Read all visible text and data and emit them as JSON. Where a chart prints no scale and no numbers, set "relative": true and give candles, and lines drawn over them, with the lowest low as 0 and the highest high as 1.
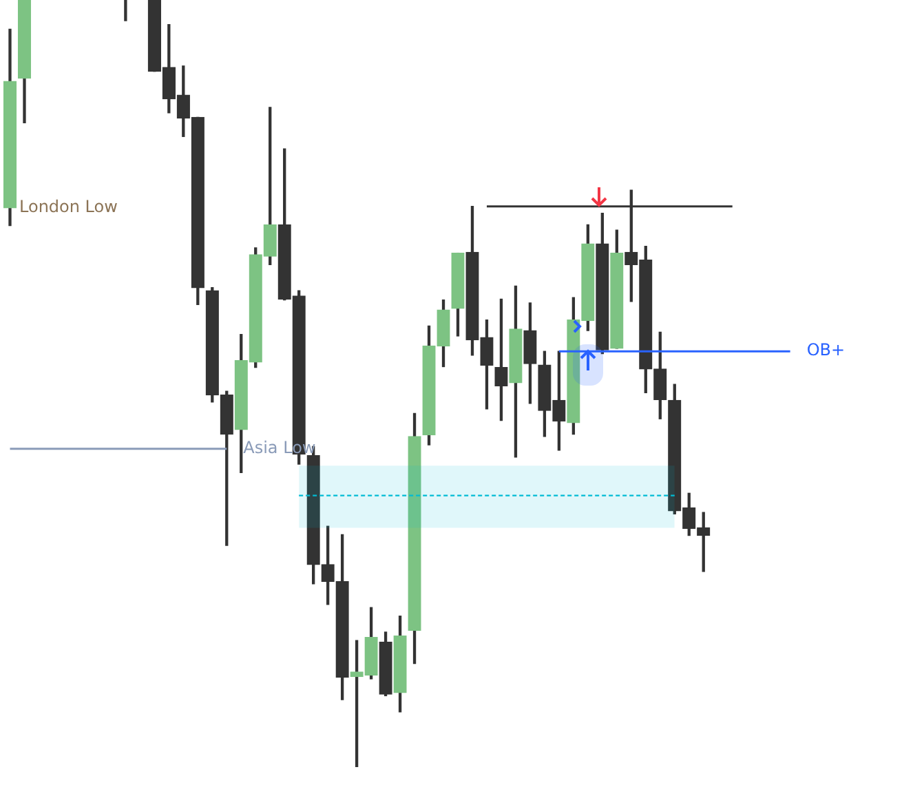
{
  "chart_data": {
    "type": "candlestick",
    "relative": true,
    "categories": [
      null,
      null,
      null,
      null,
      null,
      null,
      null,
      null,
      null,
      null,
      null,
      null,
      null,
      null,
      null,
      null,
      null,
      null,
      null,
      null,
      null,
      null,
      null,
      null,
      null,
      null,
      null,
      null,
      null,
      null,
      null,
      null,
      null,
      null,
      null,
      null,
      null,
      null,
      null,
      null,
      null,
      null,
      null,
      null,
      null,
      null,
      null,
      null,
      null,
      null,
      null,
      null,
      null,
      null,
      null,
      null,
      null,
      null,
      null,
      null,
      null,
      null,
      null
    ],
    "ohlc": [
      [
        0.729,
        0.962,
        0.706,
        0.894
      ],
      [
        0.898,
        1,
        0.84,
        1
      ],
      null,
      null,
      null,
      null,
      null,
      null,
      [
        1,
        1,
        0.973,
        1
      ],
      null,
      [
        1,
        1,
        0.907,
        0.907
      ],
      [
        0.912,
        0.968,
        0.853,
        0.871
      ],
      [
        0.876,
        0.914,
        0.822,
        0.846
      ],
      [
        0.847,
        0.847,
        0.603,
        0.625
      ],
      [
        0.621,
        0.625,
        0.476,
        0.485
      ],
      [
        0.485,
        0.49,
        0.289,
        0.434
      ],
      [
        0.44,
        0.564,
        0.384,
        0.53
      ],
      [
        0.528,
        0.677,
        0.521,
        0.668
      ],
      [
        0.666,
        0.86,
        0.655,
        0.707
      ],
      [
        0.707,
        0.806,
        0.609,
        0.61
      ],
      [
        0.614,
        0.621,
        0.395,
        0.408
      ],
      [
        0.406,
        0.418,
        0.239,
        0.264
      ],
      [
        0.264,
        0.314,
        0.212,
        0.242
      ],
      [
        0.242,
        0.303,
        0.088,
        0.117
      ],
      [
        0.118,
        0.165,
        0,
        0.124
      ],
      [
        0.12,
        0.208,
        0.115,
        0.169
      ],
      [
        0.163,
        0.176,
        0.093,
        0.095
      ],
      [
        0.097,
        0.197,
        0.072,
        0.171
      ],
      [
        0.178,
        0.461,
        0.135,
        0.431
      ],
      [
        0.433,
        0.575,
        0.42,
        0.549
      ],
      [
        0.549,
        0.609,
        0.522,
        0.596
      ],
      [
        0.598,
        0.67,
        0.562,
        0.67
      ],
      [
        0.671,
        0.731,
        0.537,
        0.557
      ],
      [
        0.56,
        0.583,
        0.467,
        0.524
      ],
      [
        0.521,
        0.61,
        0.452,
        0.497
      ],
      [
        0.501,
        0.627,
        0.404,
        0.571
      ],
      [
        0.569,
        0.605,
        0.474,
        0.526
      ],
      [
        0.524,
        0.542,
        0.431,
        0.465
      ],
      [
        0.478,
        0.542,
        0.413,
        0.451
      ],
      [
        0.449,
        0.612,
        0.434,
        0.583
      ],
      [
        0.582,
        0.707,
        0.569,
        0.682
      ],
      [
        0.682,
        0.722,
        0.539,
        0.544
      ],
      [
        0.546,
        0.7,
        0.546,
        0.67
      ],
      [
        0.671,
        0.752,
        0.607,
        0.655
      ],
      [
        0.661,
        0.679,
        0.488,
        0.519
      ],
      [
        0.519,
        0.567,
        0.454,
        0.479
      ],
      [
        0.478,
        0.499,
        0.33,
        0.334
      ],
      [
        0.338,
        0.357,
        0.302,
        0.311
      ],
      [
        0.312,
        0.332,
        0.255,
        0.302
      ],
      null,
      null,
      null,
      null,
      null,
      null,
      null,
      null,
      null,
      null,
      null,
      null,
      null,
      null
    ],
    "colors": [
      "#7dc383",
      "#7dc383",
      null,
      null,
      null,
      null,
      null,
      null,
      "#333333",
      null,
      "#333333",
      "#333333",
      "#333333",
      "#333333",
      "#333333",
      "#333333",
      "#7dc383",
      "#7dc383",
      "#7dc383",
      "#333333",
      "#333333",
      "#333333",
      "#333333",
      "#333333",
      "#7dc383",
      "#7dc383",
      "#333333",
      "#7dc383",
      "#7dc383",
      "#7dc383",
      "#7dc383",
      "#7dc383",
      "#333333",
      "#333333",
      "#333333",
      "#7dc383",
      "#333333",
      "#333333",
      "#333333",
      "#7dc383",
      "#7dc383",
      "#333333",
      "#7dc383",
      "#333333",
      "#333333",
      "#333333",
      "#333333",
      "#333333",
      "#333333",
      null,
      null,
      null,
      null,
      null,
      null,
      null,
      null,
      null,
      null,
      null,
      null,
      null,
      null
    ],
    "series": [
      {
        "name": "Asia Low",
        "type": "line",
        "color": "#8a9bb8",
        "values": [
          0.415,
          0.415,
          0.415,
          0.415,
          0.415,
          0.415,
          0.415,
          0.415,
          0.415,
          0.415,
          0.415,
          0.415,
          0.415,
          0.415,
          0.415,
          0.415,
          null,
          null,
          null,
          null,
          null,
          null,
          null,
          null,
          null,
          null,
          null,
          null,
          null,
          null,
          null,
          null,
          null,
          null,
          null,
          null,
          null,
          null,
          null,
          null,
          null,
          null,
          null,
          null,
          null,
          null,
          null,
          null,
          null,
          null,
          null,
          null,
          null,
          null,
          null,
          null,
          null,
          null,
          null,
          null,
          null,
          null,
          null
        ]
      },
      {
        "type": "line",
        "color": "#333333",
        "values": [
          null,
          null,
          null,
          null,
          null,
          null,
          null,
          null,
          null,
          null,
          null,
          null,
          null,
          null,
          null,
          null,
          null,
          null,
          null,
          null,
          null,
          null,
          null,
          null,
          null,
          null,
          null,
          null,
          null,
          null,
          null,
          null,
          null,
          0.731,
          0.731,
          0.731,
          0.731,
          0.731,
          0.731,
          0.731,
          0.731,
          0.731,
          0.731,
          0.731,
          0.731,
          0.731,
          0.731,
          0.731,
          0.731,
          0.731,
          0.731,
          null,
          null,
          null,
          null,
          null,
          null,
          null,
          null,
          null,
          null,
          null,
          null
        ]
      },
      {
        "name": "OB+",
        "type": "line",
        "color": "#2962ff",
        "values": [
          null,
          null,
          null,
          null,
          null,
          null,
          null,
          null,
          null,
          null,
          null,
          null,
          null,
          null,
          null,
          null,
          null,
          null,
          null,
          null,
          null,
          null,
          null,
          null,
          null,
          null,
          null,
          null,
          null,
          null,
          null,
          null,
          null,
          null,
          null,
          null,
          null,
          null,
          0.542,
          0.542,
          0.542,
          0.542,
          0.542,
          0.542,
          0.542,
          0.542,
          0.542,
          0.542,
          0.542,
          0.542,
          0.542,
          0.542,
          0.542,
          0.542,
          0.542,
          null,
          null,
          null,
          null,
          null,
          null,
          null,
          null
        ]
      },
      {
        "type": "line",
        "line_style": "dotted",
        "color": "#00bcd4",
        "values": [
          null,
          null,
          null,
          null,
          null,
          null,
          null,
          null,
          null,
          null,
          null,
          null,
          null,
          null,
          null,
          null,
          null,
          null,
          null,
          null,
          0.354,
          0.354,
          0.354,
          0.354,
          0.354,
          0.354,
          0.354,
          0.354,
          0.354,
          0.354,
          0.354,
          0.354,
          0.354,
          0.354,
          0.354,
          0.354,
          0.354,
          0.354,
          0.354,
          0.354,
          0.354,
          0.354,
          0.354,
          0.354,
          0.354,
          0.354,
          0.354,
          null,
          null,
          null,
          null,
          null,
          null,
          null,
          null,
          null,
          null,
          null,
          null,
          null,
          null,
          null,
          null
        ],
        "lower": [
          null,
          null,
          null,
          null,
          null,
          null,
          null,
          null,
          null,
          null,
          null,
          null,
          null,
          null,
          null,
          null,
          null,
          null,
          null,
          null,
          0.312,
          0.312,
          0.312,
          0.312,
          0.312,
          0.312,
          0.312,
          0.312,
          0.312,
          0.312,
          0.312,
          0.312,
          0.312,
          0.312,
          0.312,
          0.312,
          0.312,
          0.312,
          0.312,
          0.312,
          0.312,
          0.312,
          0.312,
          0.312,
          0.312,
          0.312,
          0.312,
          null,
          null,
          null,
          null,
          null,
          null,
          null,
          null,
          null,
          null,
          null,
          null,
          null,
          null,
          null,
          null
        ],
        "upper": [
          null,
          null,
          null,
          null,
          null,
          null,
          null,
          null,
          null,
          null,
          null,
          null,
          null,
          null,
          null,
          null,
          null,
          null,
          null,
          null,
          0.393,
          0.393,
          0.393,
          0.393,
          0.393,
          0.393,
          0.393,
          0.393,
          0.393,
          0.393,
          0.393,
          0.393,
          0.393,
          0.393,
          0.393,
          0.393,
          0.393,
          0.393,
          0.393,
          0.393,
          0.393,
          0.393,
          0.393,
          0.393,
          0.393,
          0.393,
          0.393,
          null,
          null,
          null,
          null,
          null,
          null,
          null,
          null,
          null,
          null,
          null,
          null,
          null,
          null,
          null,
          null
        ]
      }
    ],
    "annotations": [
      "London Low"
    ]
  }
}
